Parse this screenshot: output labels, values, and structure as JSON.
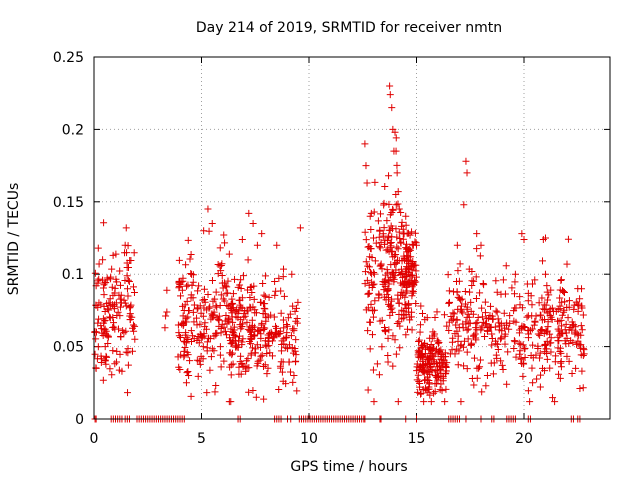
{
  "chart_data": {
    "type": "scatter",
    "title": "Day 214 of 2019, SRMTID for receiver nmtn",
    "xlabel": "GPS time / hours",
    "ylabel": "SRMTID / TECUs",
    "xlim": [
      0,
      24
    ],
    "ylim": [
      0,
      0.25
    ],
    "xticks": [
      0,
      5,
      10,
      15,
      20
    ],
    "xtick_labels": [
      "0",
      "5",
      "10",
      "15",
      "20"
    ],
    "yticks": [
      0,
      0.05,
      0.1,
      0.15,
      0.2,
      0.25
    ],
    "ytick_labels": [
      "0",
      "0.05",
      "0.1",
      "0.15",
      "0.2",
      "0.25"
    ],
    "grid": true,
    "marker": "+",
    "series": [
      {
        "name": "SRMTID",
        "color": "#e00000",
        "clusters": [
          {
            "x": [
              0.0,
              1.9
            ],
            "y_center": 0.07,
            "y_spread": 0.022,
            "count": 150,
            "outliers": [
              [
                0.2,
                0.118
              ],
              [
                1.5,
                0.132
              ],
              [
                1.45,
                0.12
              ],
              [
                0.1,
                0.035
              ],
              [
                1.3,
                0.033
              ],
              [
                0.4,
                0.11
              ]
            ]
          },
          {
            "x": [
              3.3,
              3.4
            ],
            "y_center": 0.085,
            "y_spread": 0.01,
            "count": 3,
            "outliers": [
              [
                3.3,
                0.063
              ]
            ]
          },
          {
            "x": [
              3.9,
              6.3
            ],
            "y_center": 0.07,
            "y_spread": 0.022,
            "count": 190,
            "outliers": [
              [
                5.3,
                0.145
              ],
              [
                5.5,
                0.135
              ],
              [
                5.1,
                0.13
              ],
              [
                4.3,
                0.025
              ],
              [
                4.4,
                0.03
              ]
            ]
          },
          {
            "x": [
              6.3,
              8.0
            ],
            "y_center": 0.06,
            "y_spread": 0.02,
            "count": 170,
            "outliers": [
              [
                7.2,
                0.142
              ],
              [
                7.4,
                0.135
              ],
              [
                6.9,
                0.124
              ],
              [
                7.8,
                0.128
              ],
              [
                7.6,
                0.12
              ],
              [
                7.55,
                0.015
              ]
            ]
          },
          {
            "x": [
              8.0,
              9.5
            ],
            "y_center": 0.055,
            "y_spread": 0.02,
            "count": 90,
            "outliers": [
              [
                9.6,
                0.132
              ],
              [
                8.5,
                0.12
              ],
              [
                8.4,
                0.095
              ],
              [
                9.2,
                0.1
              ]
            ]
          },
          {
            "x": [
              12.6,
              13.6
            ],
            "y_center": 0.09,
            "y_spread": 0.028,
            "count": 90,
            "outliers": [
              [
                12.6,
                0.19
              ],
              [
                12.7,
                0.163
              ],
              [
                12.9,
                0.142
              ],
              [
                13.0,
                0.125
              ],
              [
                12.75,
                0.02
              ],
              [
                12.65,
                0.175
              ],
              [
                13.35,
                0.122
              ]
            ]
          },
          {
            "x": [
              13.6,
              14.4
            ],
            "y_center": 0.1,
            "y_spread": 0.03,
            "count": 110,
            "outliers": [
              [
                13.75,
                0.23
              ],
              [
                13.78,
                0.224
              ],
              [
                13.85,
                0.215
              ],
              [
                13.9,
                0.2
              ],
              [
                14.0,
                0.198
              ],
              [
                14.05,
                0.185
              ],
              [
                13.95,
                0.185
              ],
              [
                14.1,
                0.17
              ],
              [
                14.15,
                0.157
              ],
              [
                14.2,
                0.145
              ],
              [
                13.7,
                0.168
              ],
              [
                14.3,
                0.133
              ]
            ]
          },
          {
            "x": [
              14.4,
              15.0
            ],
            "y_center": 0.1,
            "y_spread": 0.016,
            "count": 110,
            "outliers": [
              [
                14.5,
                0.14
              ],
              [
                14.7,
                0.127
              ],
              [
                15.0,
                0.12
              ]
            ]
          },
          {
            "x": [
              15.0,
              16.4
            ],
            "y_center": 0.04,
            "y_spread": 0.012,
            "count": 180,
            "outliers": [
              [
                15.2,
                0.078
              ],
              [
                15.5,
                0.07
              ],
              [
                16.3,
                0.072
              ]
            ]
          },
          {
            "x": [
              16.4,
              18.8
            ],
            "y_center": 0.065,
            "y_spread": 0.02,
            "count": 150,
            "outliers": [
              [
                17.3,
                0.178
              ],
              [
                17.35,
                0.17
              ],
              [
                17.2,
                0.148
              ],
              [
                16.9,
                0.12
              ],
              [
                18.0,
                0.12
              ],
              [
                17.8,
                0.128
              ],
              [
                17.6,
                0.028
              ],
              [
                18.3,
                0.03
              ]
            ]
          },
          {
            "x": [
              18.8,
              21.0
            ],
            "y_center": 0.062,
            "y_spread": 0.018,
            "count": 120,
            "outliers": [
              [
                19.9,
                0.128
              ],
              [
                20.0,
                0.124
              ],
              [
                19.6,
                0.1
              ],
              [
                20.9,
                0.124
              ],
              [
                21.0,
                0.125
              ],
              [
                20.4,
                0.025
              ]
            ]
          },
          {
            "x": [
              21.0,
              22.8
            ],
            "y_center": 0.06,
            "y_spread": 0.018,
            "count": 130,
            "outliers": [
              [
                22.0,
                0.107
              ],
              [
                22.5,
                0.09
              ],
              [
                22.4,
                0.035
              ],
              [
                22.8,
                0.045
              ]
            ]
          }
        ],
        "zero_points": [
          0.05,
          0.1,
          0.8,
          0.9,
          1.0,
          1.1,
          1.2,
          1.3,
          1.45,
          1.55,
          1.65,
          2.0,
          2.1,
          2.2,
          2.3,
          2.4,
          2.5,
          2.6,
          2.7,
          2.8,
          2.9,
          3.0,
          3.1,
          3.2,
          3.3,
          3.4,
          3.5,
          3.6,
          3.7,
          3.8,
          3.9,
          4.0,
          4.1,
          4.2,
          6.7,
          6.8,
          8.4,
          8.5,
          8.6,
          8.7,
          9.0,
          9.15,
          9.55,
          9.65,
          9.75,
          9.85,
          9.95,
          10.05,
          10.15,
          10.25,
          10.35,
          10.45,
          10.55,
          10.65,
          10.75,
          10.85,
          10.95,
          11.05,
          11.15,
          11.25,
          11.35,
          11.45,
          11.55,
          11.65,
          11.75,
          11.85,
          11.95,
          12.05,
          12.15,
          12.25,
          12.35,
          12.45,
          12.55,
          12.6,
          13.3,
          13.35,
          14.5,
          15.0,
          16.5,
          16.6,
          16.7,
          16.8,
          16.9,
          17.0,
          17.3,
          18.0,
          18.5,
          18.6,
          19.2,
          19.3,
          19.4,
          19.5,
          19.6,
          20.2,
          20.3,
          22.2,
          22.3,
          22.5,
          22.6
        ]
      }
    ]
  }
}
